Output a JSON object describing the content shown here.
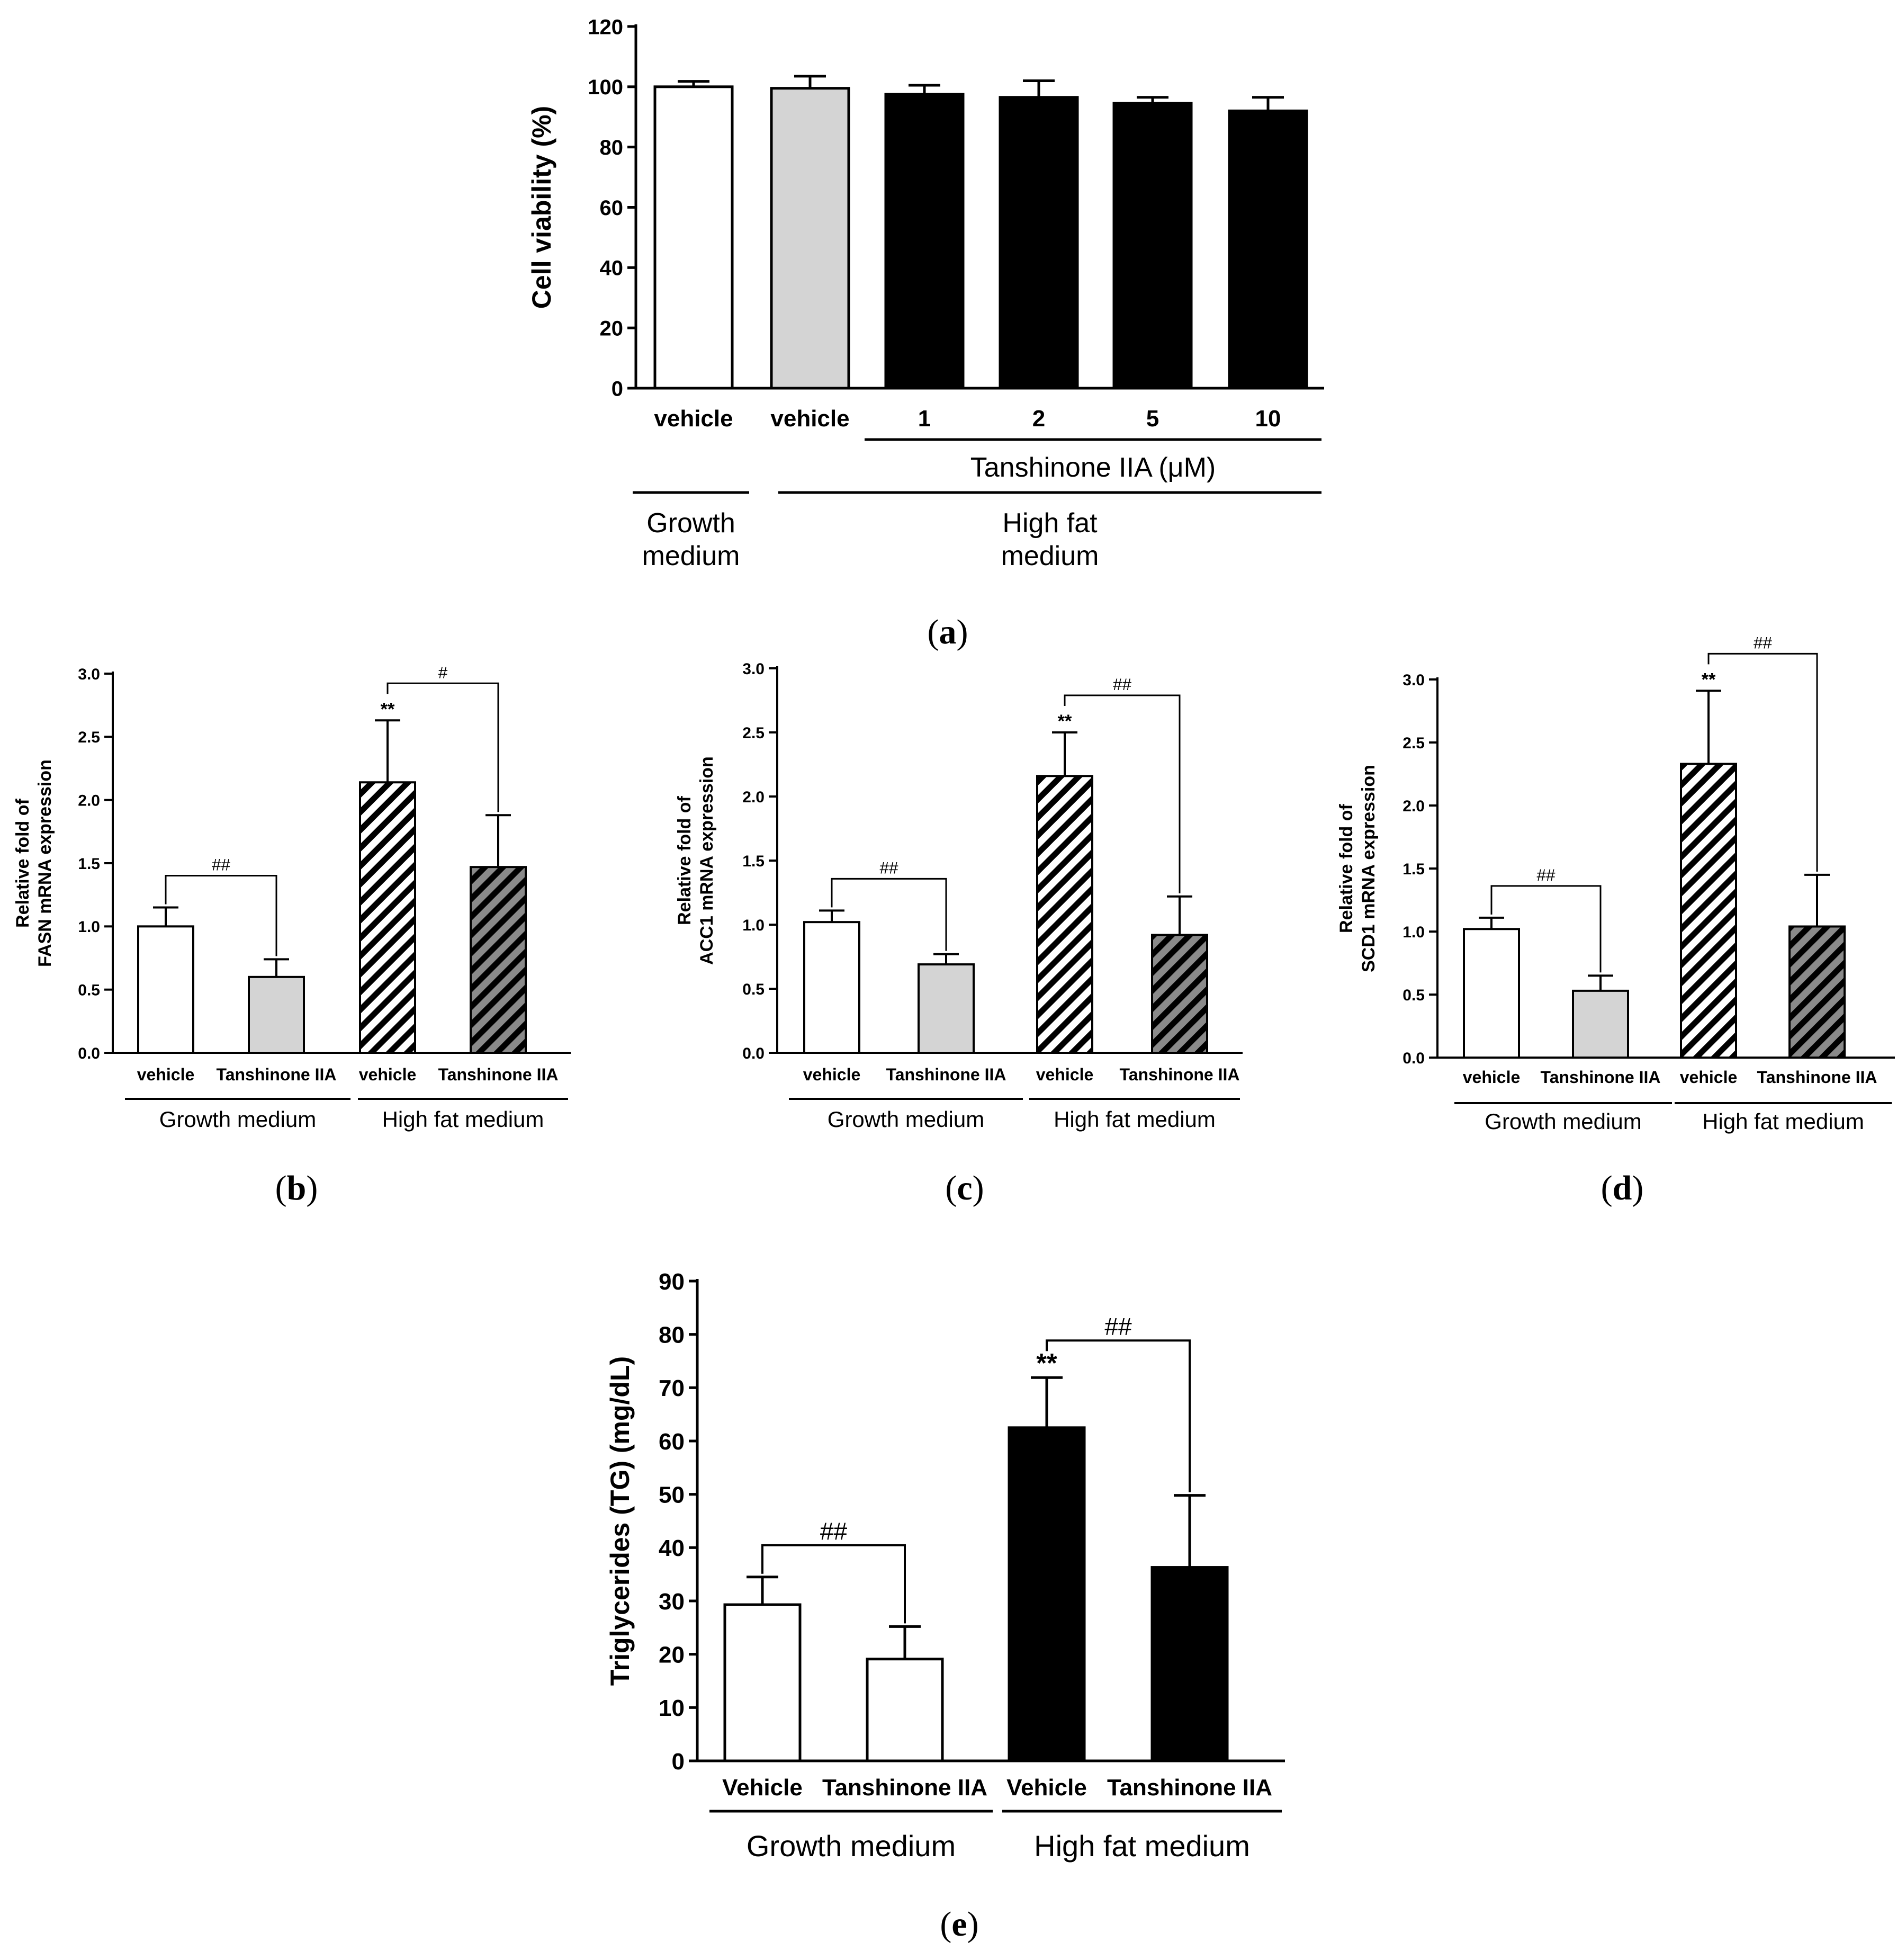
{
  "colors": {
    "white_bar": "#ffffff",
    "grey_bar": "#d4d4d4",
    "black_bar": "#000000",
    "hatch_light_bg": "#ffffff",
    "hatch_dark_bg": "#8a8a8a",
    "line": "#000000"
  },
  "chart_data": [
    {
      "id": "a",
      "type": "bar",
      "panel_label": "a",
      "ylabel": "Cell viability (%)",
      "ylim": [
        0,
        120
      ],
      "yticks": [
        0,
        20,
        40,
        60,
        80,
        100,
        120
      ],
      "categories": [
        "vehicle",
        "vehicle",
        "1",
        "2",
        "5",
        "10"
      ],
      "values": [
        100,
        99.5,
        97.5,
        96.5,
        94.5,
        92
      ],
      "errors": [
        1.8,
        4,
        3,
        5.5,
        2,
        4.5
      ],
      "fills": [
        "white",
        "grey",
        "black",
        "black",
        "black",
        "black"
      ],
      "brackets": [],
      "stars": [],
      "group_labels": [
        {
          "text": "Tanshinone IIA (μM)",
          "from": 2,
          "to": 5,
          "row": 1
        },
        {
          "text": "Growth medium",
          "from": 0,
          "to": 0,
          "row": 2,
          "lines": [
            "Growth",
            "medium"
          ]
        },
        {
          "text": "High fat medium",
          "from": 1,
          "to": 5,
          "row": 2,
          "lines": [
            "High fat",
            "medium"
          ]
        }
      ]
    },
    {
      "id": "b",
      "type": "bar",
      "panel_label": "b",
      "ylabel": "Relative fold of FASN mRNA expression",
      "ylabel_lines": [
        "Relative fold of",
        "FASN mRNA expression"
      ],
      "ylim": [
        0,
        3.0
      ],
      "yticks": [
        "0.0",
        "0.5",
        "1.0",
        "1.5",
        "2.0",
        "2.5",
        "3.0"
      ],
      "categories": [
        "vehicle",
        "Tanshinone IIA",
        "vehicle",
        "Tanshinone IIA"
      ],
      "values": [
        1.0,
        0.6,
        2.14,
        1.47
      ],
      "errors": [
        0.15,
        0.14,
        0.49,
        0.41
      ],
      "fills": [
        "white",
        "grey",
        "hatch-light",
        "hatch-dark"
      ],
      "brackets": [
        {
          "from": 0,
          "to": 1,
          "label": "##"
        },
        {
          "from": 2,
          "to": 3,
          "label": "#"
        }
      ],
      "stars": [
        {
          "bar": 2,
          "label": "**"
        }
      ],
      "group_labels": [
        {
          "text": "Growth medium",
          "from": 0,
          "to": 1,
          "row": 1
        },
        {
          "text": "High fat medium",
          "from": 2,
          "to": 3,
          "row": 1
        }
      ]
    },
    {
      "id": "c",
      "type": "bar",
      "panel_label": "c",
      "ylabel": "Relative fold of ACC1 mRNA expression",
      "ylabel_lines": [
        "Relative fold of",
        "ACC1 mRNA expression"
      ],
      "ylim": [
        0,
        3.0
      ],
      "yticks": [
        "0.0",
        "0.5",
        "1.0",
        "1.5",
        "2.0",
        "2.5",
        "3.0"
      ],
      "categories": [
        "vehicle",
        "Tanshinone IIA",
        "vehicle",
        "Tanshinone IIA"
      ],
      "values": [
        1.02,
        0.69,
        2.16,
        0.92
      ],
      "errors": [
        0.09,
        0.08,
        0.34,
        0.3
      ],
      "fills": [
        "white",
        "grey",
        "hatch-light",
        "hatch-dark"
      ],
      "brackets": [
        {
          "from": 0,
          "to": 1,
          "label": "##"
        },
        {
          "from": 2,
          "to": 3,
          "label": "##"
        }
      ],
      "stars": [
        {
          "bar": 2,
          "label": "**"
        }
      ],
      "group_labels": [
        {
          "text": "Growth medium",
          "from": 0,
          "to": 1,
          "row": 1
        },
        {
          "text": "High fat medium",
          "from": 2,
          "to": 3,
          "row": 1
        }
      ]
    },
    {
      "id": "d",
      "type": "bar",
      "panel_label": "d",
      "ylabel": "Relative fold of SCD1 mRNA expression",
      "ylabel_lines": [
        "Relative fold of",
        "SCD1 mRNA expression"
      ],
      "ylim": [
        0,
        3.0
      ],
      "yticks": [
        "0.0",
        "0.5",
        "1.0",
        "1.5",
        "2.0",
        "2.5",
        "3.0"
      ],
      "categories": [
        "vehicle",
        "Tanshinone IIA",
        "vehicle",
        "Tanshinone IIA"
      ],
      "values": [
        1.02,
        0.53,
        2.33,
        1.04
      ],
      "errors": [
        0.09,
        0.12,
        0.58,
        0.41
      ],
      "fills": [
        "white",
        "grey",
        "hatch-light",
        "hatch-dark"
      ],
      "brackets": [
        {
          "from": 0,
          "to": 1,
          "label": "##"
        },
        {
          "from": 2,
          "to": 3,
          "label": "##"
        }
      ],
      "stars": [
        {
          "bar": 2,
          "label": "**"
        }
      ],
      "group_labels": [
        {
          "text": "Growth medium",
          "from": 0,
          "to": 1,
          "row": 1
        },
        {
          "text": "High fat medium",
          "from": 2,
          "to": 3,
          "row": 1
        }
      ]
    },
    {
      "id": "e",
      "type": "bar",
      "panel_label": "e",
      "ylabel": "Triglycerides (TG) (mg/dL)",
      "ylim": [
        0,
        90
      ],
      "yticks": [
        0,
        10,
        20,
        30,
        40,
        50,
        60,
        70,
        80,
        90
      ],
      "categories": [
        "Vehicle",
        "Tanshinone IIA",
        "Vehicle",
        "Tanshinone IIA"
      ],
      "values": [
        29.3,
        19.1,
        62.5,
        36.3
      ],
      "errors": [
        5.2,
        6.1,
        9.4,
        13.5
      ],
      "fills": [
        "white",
        "white",
        "black",
        "black"
      ],
      "brackets": [
        {
          "from": 0,
          "to": 1,
          "label": "##"
        },
        {
          "from": 2,
          "to": 3,
          "label": "##"
        }
      ],
      "stars": [
        {
          "bar": 2,
          "label": "**"
        }
      ],
      "group_labels": [
        {
          "text": "Growth medium",
          "from": 0,
          "to": 1,
          "row": 1
        },
        {
          "text": "High fat medium",
          "from": 2,
          "to": 3,
          "row": 1
        }
      ]
    }
  ]
}
